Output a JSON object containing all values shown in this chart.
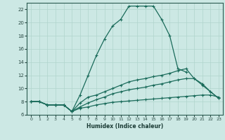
{
  "xlabel": "Humidex (Indice chaleur)",
  "bg_color": "#cce8e4",
  "grid_color": "#b0d4cc",
  "line_color": "#1a6b5a",
  "xlim": [
    -0.5,
    23.5
  ],
  "ylim": [
    6,
    23
  ],
  "xticks": [
    0,
    1,
    2,
    3,
    4,
    5,
    6,
    7,
    8,
    9,
    10,
    11,
    12,
    13,
    14,
    15,
    16,
    17,
    18,
    19,
    20,
    21,
    22,
    23
  ],
  "yticks": [
    6,
    8,
    10,
    12,
    14,
    16,
    18,
    20,
    22
  ],
  "line1_x": [
    0,
    1,
    2,
    3,
    4,
    5,
    6,
    7,
    8,
    9,
    10,
    11,
    12,
    13,
    14,
    15,
    16,
    17,
    18,
    19
  ],
  "line1_y": [
    8.0,
    8.0,
    7.5,
    7.5,
    7.5,
    6.5,
    9.0,
    12.0,
    15.0,
    17.5,
    19.5,
    20.5,
    22.5,
    22.5,
    22.5,
    22.5,
    20.5,
    18.0,
    13.0,
    12.5
  ],
  "line2_x": [
    0,
    1,
    2,
    3,
    4,
    5,
    6,
    7,
    8,
    9,
    10,
    11,
    12,
    13,
    14,
    15,
    16,
    17,
    18,
    19,
    20,
    21,
    22,
    23
  ],
  "line2_y": [
    8.0,
    8.0,
    7.5,
    7.5,
    7.5,
    6.5,
    7.0,
    7.2,
    7.5,
    7.7,
    7.9,
    8.0,
    8.1,
    8.2,
    8.3,
    8.4,
    8.5,
    8.6,
    8.7,
    8.8,
    8.9,
    9.0,
    9.0,
    8.7
  ],
  "line3_x": [
    0,
    1,
    2,
    3,
    4,
    5,
    6,
    7,
    8,
    9,
    10,
    11,
    12,
    13,
    14,
    15,
    16,
    17,
    18,
    19,
    20,
    21,
    22,
    23
  ],
  "line3_y": [
    8.0,
    8.0,
    7.5,
    7.5,
    7.5,
    6.5,
    7.2,
    7.8,
    8.3,
    8.7,
    9.2,
    9.5,
    9.8,
    10.0,
    10.2,
    10.5,
    10.7,
    11.0,
    11.3,
    11.5,
    11.5,
    10.7,
    9.5,
    8.5
  ],
  "line4_x": [
    0,
    1,
    2,
    3,
    4,
    5,
    6,
    7,
    8,
    9,
    10,
    11,
    12,
    13,
    14,
    15,
    16,
    17,
    18,
    19,
    20,
    21,
    22,
    23
  ],
  "line4_y": [
    8.0,
    8.0,
    7.5,
    7.5,
    7.5,
    6.5,
    7.8,
    8.7,
    9.0,
    9.5,
    10.0,
    10.5,
    11.0,
    11.3,
    11.5,
    11.8,
    12.0,
    12.3,
    12.7,
    13.0,
    11.5,
    10.5,
    9.5,
    8.5
  ]
}
